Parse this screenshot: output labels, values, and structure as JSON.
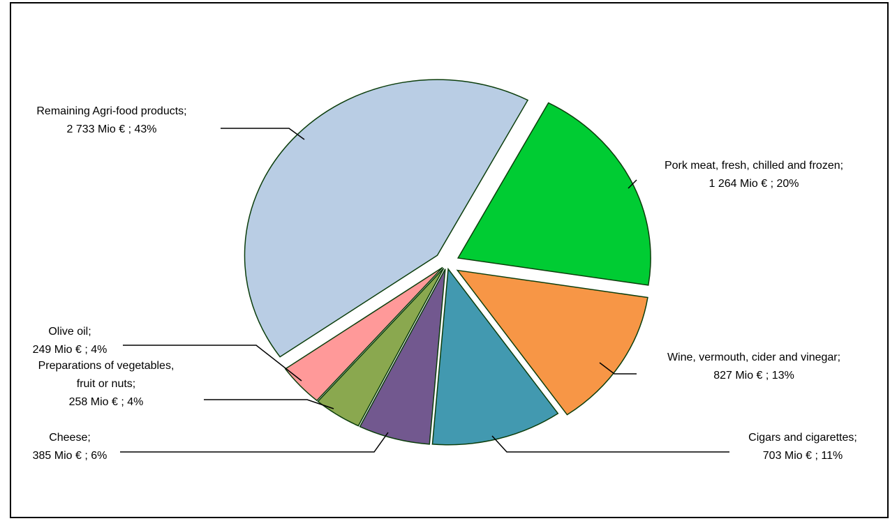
{
  "chart_data": {
    "type": "pie",
    "title": "",
    "unit": "Mio €",
    "exploded": true,
    "start_angle_deg": 28,
    "direction": "clockwise",
    "slices": [
      {
        "label_lines": [
          "Pork meat, fresh, chilled and frozen;",
          "1 264 Mio € ; 20%"
        ],
        "value": 1264,
        "percent": 20,
        "color": "#00cc33"
      },
      {
        "label_lines": [
          "Wine, vermouth, cider and vinegar;",
          "827 Mio € ; 13%"
        ],
        "value": 827,
        "percent": 13,
        "color": "#f79646"
      },
      {
        "label_lines": [
          "Cigars and cigarettes;",
          "703 Mio € ; 11%"
        ],
        "value": 703,
        "percent": 11,
        "color": "#4299b0"
      },
      {
        "label_lines": [
          "Cheese;",
          "385 Mio € ; 6%"
        ],
        "value": 385,
        "percent": 6,
        "color": "#72588f"
      },
      {
        "label_lines": [
          "Preparations of vegetables,",
          "fruit or nuts;",
          "258 Mio € ; 4%"
        ],
        "value": 258,
        "percent": 4,
        "color": "#8aa84f"
      },
      {
        "label_lines": [
          "Olive oil;",
          "249 Mio € ; 4%"
        ],
        "value": 249,
        "percent": 4,
        "color": "#ff9999"
      },
      {
        "label_lines": [
          "Remaining Agri-food products;",
          "2 733 Mio € ; 43%"
        ],
        "value": 2733,
        "percent": 43,
        "color": "#b9cde4"
      }
    ]
  }
}
